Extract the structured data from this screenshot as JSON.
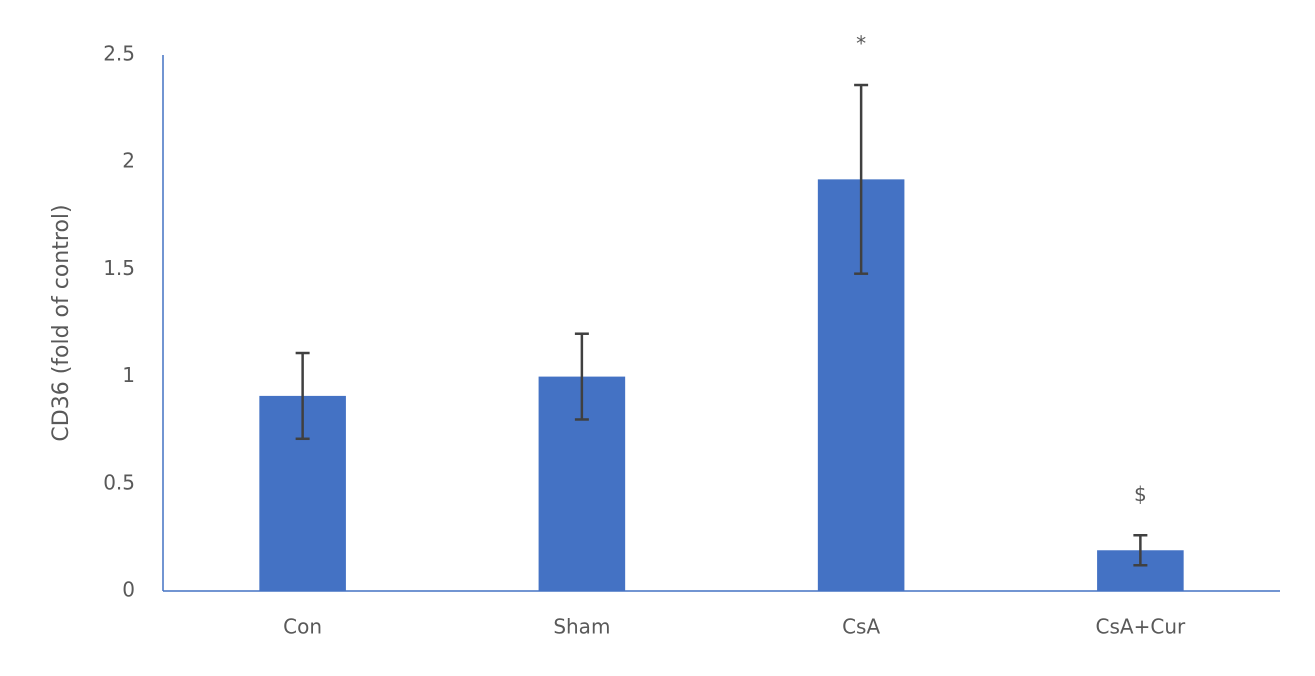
{
  "chart_data": {
    "type": "bar",
    "y_label": "CD36 (fold of control)",
    "categories": [
      "Con",
      "Sham",
      "CsA",
      "CsA+Cur"
    ],
    "values": [
      0.91,
      1.0,
      1.92,
      0.19
    ],
    "errors": [
      0.2,
      0.2,
      0.44,
      0.07
    ],
    "annotations": [
      null,
      null,
      "*",
      "$"
    ],
    "color": "#4472c4",
    "ylim": [
      0,
      2.5
    ],
    "yticks": [
      0,
      0.5,
      1,
      1.5,
      2,
      2.5
    ],
    "grid": false
  }
}
